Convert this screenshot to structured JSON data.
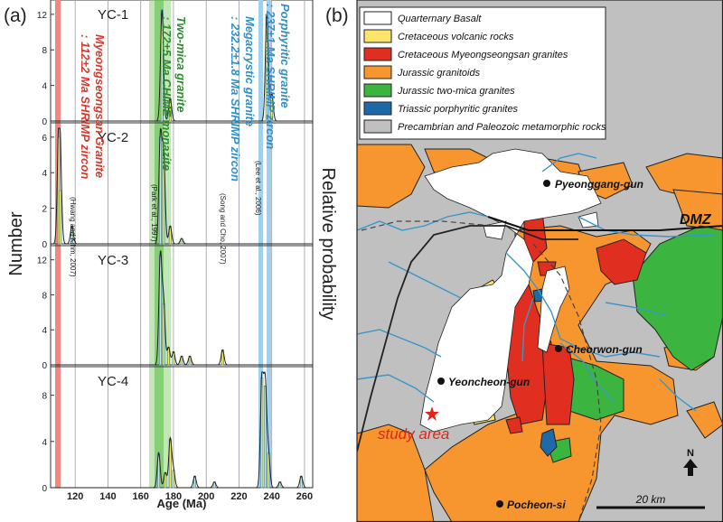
{
  "panels": {
    "a": {
      "label": "(a)"
    },
    "b": {
      "label": "(b)"
    }
  },
  "left": {
    "y_axis_label": "Number",
    "right_axis_label": "Relative probability",
    "x_axis_label": "Age (Ma)",
    "x_ticks": [
      "120",
      "140",
      "160",
      "180",
      "200",
      "220",
      "240",
      "260"
    ],
    "x_range": [
      105,
      265
    ],
    "samples": [
      {
        "name": "YC-1",
        "y_max": 13,
        "ticks": [
          "0",
          "4",
          "8",
          "12"
        ],
        "peaks": [
          [
            173,
            12.5
          ],
          [
            178,
            2.5
          ],
          [
            237,
            12
          ],
          [
            240,
            3
          ]
        ]
      },
      {
        "name": "YC-2",
        "y_max": 6.5,
        "ticks": [
          "0",
          "2",
          "4",
          "6"
        ],
        "peaks": [
          [
            110,
            6
          ],
          [
            111,
            3
          ],
          [
            118,
            1
          ],
          [
            172,
            6
          ],
          [
            174,
            5
          ],
          [
            178,
            1
          ],
          [
            185,
            0.3
          ]
        ]
      },
      {
        "name": "YC-3",
        "y_max": 13,
        "ticks": [
          "0",
          "4",
          "8",
          "12"
        ],
        "peaks": [
          [
            172,
            12.5
          ],
          [
            174,
            7
          ],
          [
            177,
            2
          ],
          [
            180,
            1.5
          ],
          [
            185,
            1
          ],
          [
            190,
            1
          ],
          [
            210,
            1.7
          ]
        ]
      },
      {
        "name": "YC-4",
        "y_max": 10,
        "ticks": [
          "0",
          "4",
          "8"
        ],
        "peaks": [
          [
            171,
            3
          ],
          [
            175,
            1.3
          ],
          [
            178,
            4.2
          ],
          [
            180,
            1.5
          ],
          [
            193,
            1
          ],
          [
            205,
            0.5
          ],
          [
            234,
            9.5
          ],
          [
            236,
            8.8
          ],
          [
            238,
            3
          ],
          [
            245,
            0.5
          ],
          [
            258,
            1
          ]
        ]
      }
    ],
    "annotations": [
      {
        "id": "myeongseongsan",
        "title": "Myeongseongsan Granite",
        "detail": ": 112±2 Ma SHRIMP zircon",
        "ref": "(Hwang and Kihm, 2007)",
        "color": "#d13a2c"
      },
      {
        "id": "two-mica",
        "title": "Two-mica granite",
        "detail": ": 172±5 Ma CHIME monazite",
        "ref": "(Park et al., 1997)",
        "color": "#2e8b2e"
      },
      {
        "id": "megacrystic",
        "title": "Megacrystic granite",
        "detail": ": 232.2±1.8 Ma SHRIMP zircon",
        "ref": "(Song and Cho, 2007)",
        "color": "#2f8fc8"
      },
      {
        "id": "porphyritic",
        "title": "Porphyritic granite",
        "detail": ": 237±1 Ma SHRIMP zircon",
        "ref": "(Lee et al., 2006)",
        "color": "#2f8fc8"
      }
    ]
  },
  "right": {
    "legend": [
      {
        "label": "Quarternary Basalt",
        "color": "#ffffff"
      },
      {
        "label": "Cretaceous volcanic rocks",
        "color": "#fde46a"
      },
      {
        "label": "Cretaceous Myeongseongsan granites",
        "color": "#e02e20"
      },
      {
        "label": "Jurassic granitoids",
        "color": "#f7962e"
      },
      {
        "label": "Jurassic two-mica granites",
        "color": "#3cb540"
      },
      {
        "label": "Triassic porphyritic granites",
        "color": "#1e6aa8"
      },
      {
        "label": "Precambrian and Paleozoic metamorphic rocks",
        "color": "#c0c0c0"
      }
    ],
    "places": {
      "pyeonggang": "Pyeonggang-gun",
      "cheorwon": "Cheorwon-gun",
      "yeoncheon": "Yeoncheon-gun",
      "pocheon": "Pocheon-si"
    },
    "dmz": "DMZ",
    "study_area": "study area",
    "north": "N",
    "scale_bar": "20 km"
  }
}
